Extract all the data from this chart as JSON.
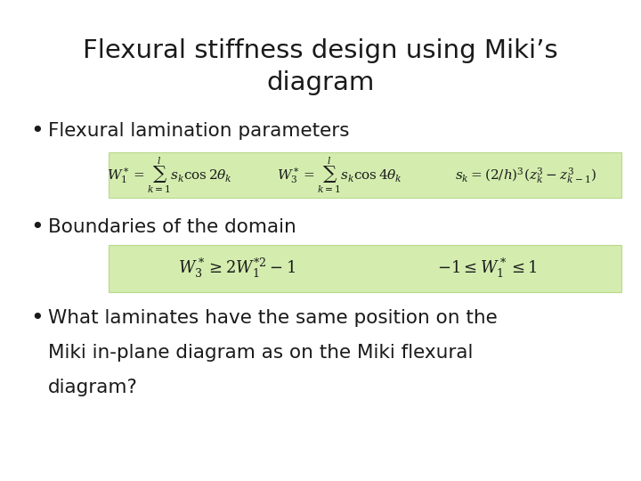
{
  "title_line1": "Flexural stiffness design using Miki’s",
  "title_line2": "diagram",
  "title_fontsize": 21,
  "background_color": "#ffffff",
  "text_color": "#1a1a1a",
  "bullet1": "Flexural lamination parameters",
  "bullet2": "Boundaries of the domain",
  "bullet3_line1": "What laminates have the same position on the",
  "bullet3_line2": "Miki in-plane diagram as on the Miki flexural",
  "bullet3_line3": "diagram?",
  "eq1_box_color": "#d4edaf",
  "eq2_box_color": "#d4edaf",
  "eq1_box_edge": "#b8d98a",
  "eq2_box_edge": "#b8d98a",
  "bullet_fontsize": 15.5,
  "eq1_fontsize": 11,
  "eq2_fontsize": 13
}
